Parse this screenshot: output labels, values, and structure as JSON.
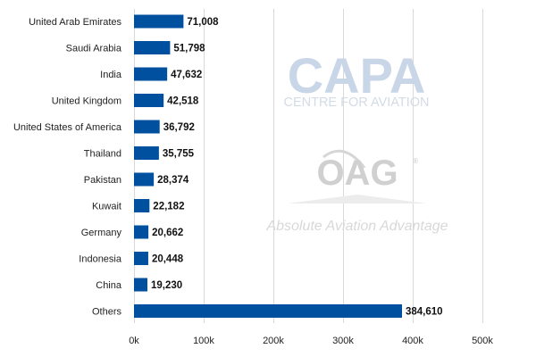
{
  "watermark": {
    "brand": "CAPA",
    "brand_sub": "CENTRE FOR AVIATION",
    "partner": "OAG",
    "partner_mark": "®",
    "tagline": "Absolute Aviation Advantage"
  },
  "chart_data": {
    "type": "bar",
    "orientation": "horizontal",
    "title": "",
    "xlabel": "",
    "ylabel": "",
    "categories": [
      "United Arab Emirates",
      "Saudi Arabia",
      "India",
      "United Kingdom",
      "United States of America",
      "Thailand",
      "Pakistan",
      "Kuwait",
      "Germany",
      "Indonesia",
      "China",
      "Others"
    ],
    "values": [
      71008,
      51798,
      47632,
      42518,
      36792,
      35755,
      28374,
      22182,
      20662,
      20448,
      19230,
      384610
    ],
    "value_labels": [
      "71,008",
      "51,798",
      "47,632",
      "42,518",
      "36,792",
      "35,755",
      "28,374",
      "22,182",
      "20,662",
      "20,448",
      "19,230",
      "384,610"
    ],
    "xlim": [
      0,
      500000
    ],
    "ticks": [
      0,
      100000,
      200000,
      300000,
      400000,
      500000
    ],
    "tick_labels": [
      "0k",
      "100k",
      "200k",
      "300k",
      "400k",
      "500k"
    ],
    "grid": true,
    "legend": "none",
    "bar_color": "#0050a0"
  }
}
